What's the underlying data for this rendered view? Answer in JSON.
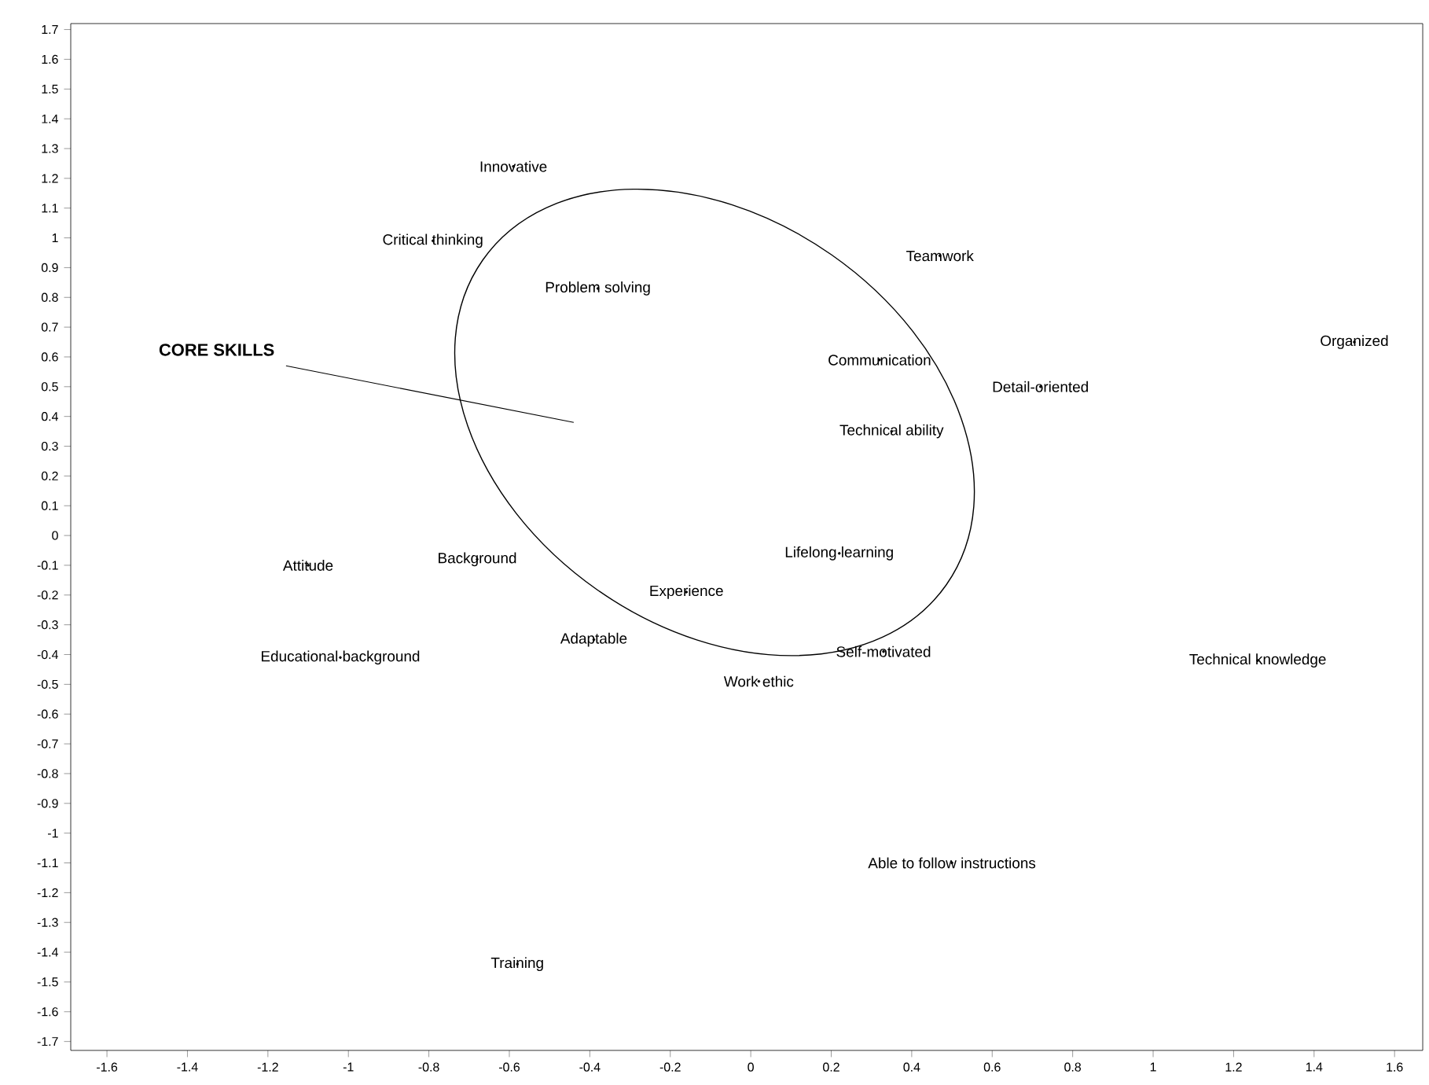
{
  "chart_data": {
    "type": "scatter",
    "marker": "circle",
    "grid": false,
    "x": [
      -0.59,
      -0.79,
      -0.38,
      0.47,
      0.32,
      0.72,
      1.5,
      0.35,
      -1.1,
      -0.68,
      0.22,
      -0.16,
      -0.39,
      -1.02,
      0.33,
      0.02,
      1.26,
      0.5,
      -0.58
    ],
    "values": [
      1.24,
      0.99,
      0.83,
      0.94,
      0.59,
      0.5,
      0.65,
      0.35,
      -0.1,
      -0.08,
      -0.06,
      -0.19,
      -0.35,
      -0.41,
      -0.39,
      -0.49,
      -0.42,
      -1.1,
      -1.44
    ],
    "value_labels": [
      "Innovative",
      "Critical thinking",
      "Problem solving",
      "Teamwork",
      "Communication",
      "Detail-oriented",
      "Organized",
      "Technical ability",
      "Attitude",
      "Background",
      "Lifelong learning",
      "Experience",
      "Adaptable",
      "Educational background",
      "Self-motivated",
      "Work ethic",
      "Technical knowledge",
      "Able to follow instructions",
      "Training"
    ],
    "annotations": [
      "**CORE SKILLS**"
    ],
    "xlim": [
      -1.69,
      1.67
    ],
    "ylim": [
      -1.73,
      1.72
    ],
    "xticks": [
      -1.6,
      -1.4,
      -1.2,
      -1,
      -0.8,
      -0.6,
      -0.4,
      -0.2,
      0,
      0.2,
      0.4,
      0.6,
      0.8,
      1,
      1.2,
      1.4,
      1.6
    ],
    "yticks": [
      -1.7,
      -1.6,
      -1.5,
      -1.4,
      -1.3,
      -1.2,
      -1.1,
      -1,
      -0.9,
      -0.8,
      -0.7,
      -0.6,
      -0.5,
      -0.4,
      -0.3,
      -0.2,
      -0.1,
      0,
      0.1,
      0.2,
      0.3,
      0.4,
      0.5,
      0.6,
      0.7,
      0.8,
      0.9,
      1,
      1.1,
      1.2,
      1.3,
      1.4,
      1.5,
      1.6,
      1.7
    ]
  }
}
